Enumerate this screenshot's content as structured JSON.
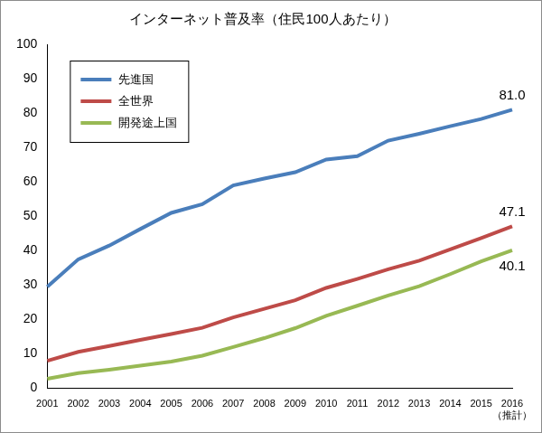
{
  "chart_data": {
    "type": "line",
    "title": "インターネット普及率（住民100人あたり）",
    "categories": [
      "2001",
      "2002",
      "2003",
      "2004",
      "2005",
      "2006",
      "2007",
      "2008",
      "2009",
      "2010",
      "2011",
      "2012",
      "2013",
      "2014",
      "2015",
      "2016（推計）"
    ],
    "series": [
      {
        "name": "先進国",
        "color": "#4a7ebb",
        "values": [
          29.5,
          37.5,
          41.5,
          46.3,
          51.0,
          53.5,
          59.0,
          61.0,
          62.8,
          66.5,
          67.5,
          72.0,
          74.0,
          76.2,
          78.3,
          81.0
        ]
      },
      {
        "name": "全世界",
        "color": "#be4b48",
        "values": [
          8.0,
          10.6,
          12.3,
          14.1,
          15.8,
          17.6,
          20.6,
          23.1,
          25.6,
          29.2,
          31.8,
          34.6,
          37.1,
          40.4,
          43.7,
          47.1
        ]
      },
      {
        "name": "開発途上国",
        "color": "#98b954",
        "values": [
          2.8,
          4.4,
          5.4,
          6.6,
          7.8,
          9.5,
          12.0,
          14.6,
          17.5,
          21.1,
          24.0,
          27.0,
          29.7,
          33.2,
          36.9,
          40.1
        ]
      }
    ],
    "ylim": [
      0,
      100
    ],
    "yticks": [
      0,
      10,
      20,
      30,
      40,
      50,
      60,
      70,
      80,
      90,
      100
    ],
    "grid": false,
    "legend": "upper left",
    "annotations": [
      {
        "series": "先進国",
        "x": "2016（推計）",
        "value": 81.0,
        "text": "81.0"
      },
      {
        "series": "全世界",
        "x": "2016（推計）",
        "value": 47.1,
        "text": "47.1"
      },
      {
        "series": "開発途上国",
        "x": "2016（推計）",
        "value": 40.1,
        "text": "40.1"
      }
    ]
  }
}
